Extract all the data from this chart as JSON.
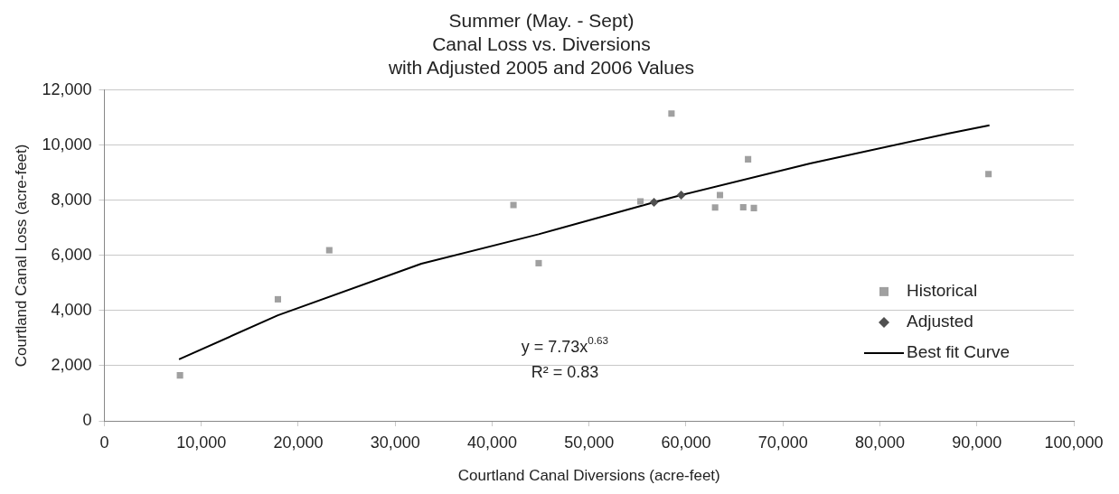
{
  "chart_data": {
    "type": "scatter",
    "title": "Summer (May. - Sept)\nCanal Loss vs. Diversions\nwith Adjusted 2005 and 2006 Values",
    "xlabel": "Courtland Canal Diversions (acre-feet)",
    "ylabel": "Courtland Canal Loss (acre-feet)",
    "xlim": [
      0,
      100000
    ],
    "xticks": [
      {
        "value": 0,
        "label": "0"
      },
      {
        "value": 10000,
        "label": "10,000"
      },
      {
        "value": 20000,
        "label": "20,000"
      },
      {
        "value": 30000,
        "label": "30,000"
      },
      {
        "value": 40000,
        "label": "40,000"
      },
      {
        "value": 50000,
        "label": "50,000"
      },
      {
        "value": 60000,
        "label": "60,000"
      },
      {
        "value": 70000,
        "label": "70,000"
      },
      {
        "value": 80000,
        "label": "80,000"
      },
      {
        "value": 90000,
        "label": "90,000"
      },
      {
        "value": 100000,
        "label": "100,000"
      }
    ],
    "ylim": [
      0,
      12000
    ],
    "yticks": [
      {
        "value": 0,
        "label": "0"
      },
      {
        "value": 2000,
        "label": "2,000"
      },
      {
        "value": 4000,
        "label": "4,000"
      },
      {
        "value": 6000,
        "label": "6,000"
      },
      {
        "value": 8000,
        "label": "8,000"
      },
      {
        "value": 10000,
        "label": "10,000"
      },
      {
        "value": 12000,
        "label": "12,000"
      }
    ],
    "grid": "y",
    "legend": "right",
    "annotations": [
      "y = 7.73x$^{0.63}$",
      "R² = 0.83"
    ],
    "series": [
      {
        "name": "Historical",
        "type": "scatter",
        "marker": "square",
        "color": "#a0a0a0",
        "x": [
          7800,
          17900,
          23200,
          42200,
          44800,
          55300,
          58500,
          63000,
          63500,
          65900,
          66400,
          67000,
          91200
        ],
        "values": [
          1650,
          4410,
          6190,
          7830,
          5720,
          7960,
          11150,
          7740,
          8190,
          7750,
          9490,
          7720,
          8950
        ]
      },
      {
        "name": "Adjusted",
        "type": "scatter",
        "marker": "diamond",
        "color": "#505050",
        "x": [
          56700,
          59500
        ],
        "values": [
          7930,
          8190
        ]
      },
      {
        "name": "Best fit Curve",
        "type": "line",
        "marker": "none",
        "line_style": "solid",
        "color": "#000000",
        "x": [
          7700,
          17900,
          32700,
          44800,
          56700,
          59500,
          72800,
          87100,
          91300
        ],
        "values": [
          2230,
          3830,
          5700,
          6770,
          7930,
          8190,
          9340,
          10430,
          10720
        ]
      }
    ]
  }
}
